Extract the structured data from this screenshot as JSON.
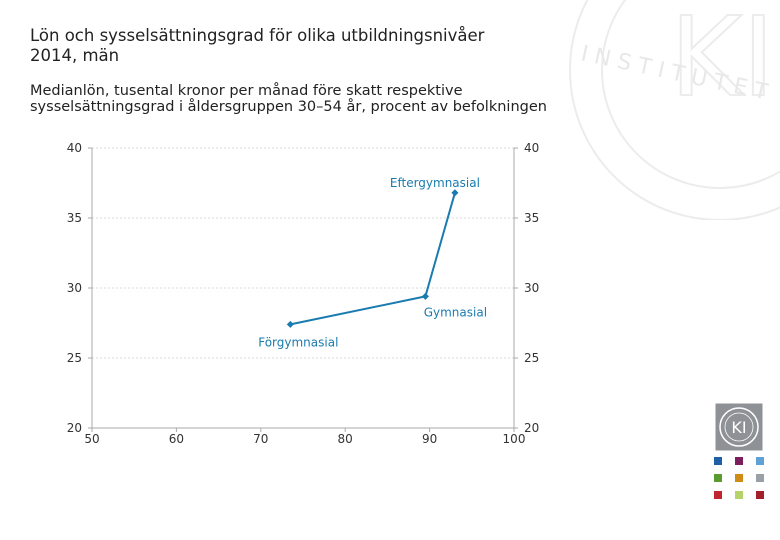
{
  "title": "Lön och sysselsättningsgrad för olika utbildningsnivåer 2014, män",
  "subtitle": "Medianlön, tusental kronor per månad före skatt respektive sysselsättningsgrad i åldersgruppen 30–54 år, procent av befolkningen",
  "watermark_text": "INSTITUTET",
  "logo_text": "KI",
  "colors": {
    "series": "#1a7bb0",
    "axis": "#aaaaaa",
    "grid": "#cccccc",
    "squares": [
      "#1f5fa6",
      "#7a1f5c",
      "#5fa3d6",
      "#5a9a2e",
      "#d08a16",
      "#9aa0a6",
      "#c0262d",
      "#b6d36a",
      "#a31f2a"
    ]
  },
  "chart_data": {
    "type": "line",
    "xlim": [
      50,
      100
    ],
    "ylim": [
      20,
      40
    ],
    "xticks": [
      50,
      60,
      70,
      80,
      90,
      100
    ],
    "yticks": [
      20,
      25,
      30,
      35,
      40
    ],
    "y2ticks": [
      20,
      25,
      30,
      35,
      40
    ],
    "grid": true,
    "points": [
      {
        "label": "Förgymnasial",
        "x": 73.5,
        "y": 27.4
      },
      {
        "label": "Gymnasial",
        "x": 89.5,
        "y": 29.4
      },
      {
        "label": "Eftergymnasial",
        "x": 93,
        "y": 36.8
      }
    ]
  }
}
